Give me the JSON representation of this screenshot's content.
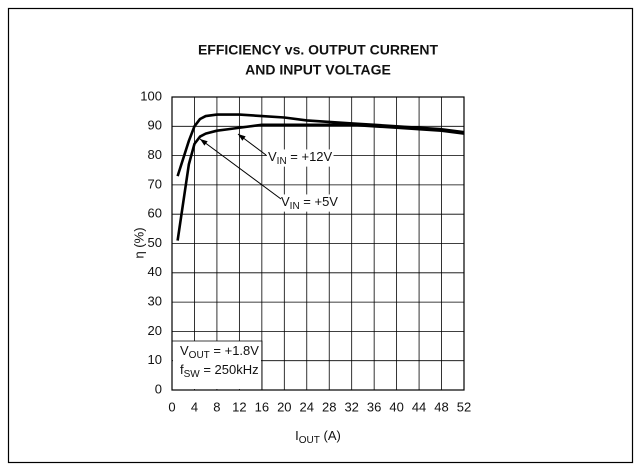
{
  "chart_data": {
    "type": "line",
    "title": [
      "EFFICIENCY vs. OUTPUT CURRENT",
      "AND INPUT VOLTAGE"
    ],
    "ylabel": "η (%)",
    "xlabel": [
      "I",
      "OUT",
      " (A)"
    ],
    "x": [
      1,
      2,
      3,
      4,
      5,
      6,
      8,
      10,
      12,
      16,
      20,
      24,
      28,
      32,
      36,
      40,
      44,
      48,
      52
    ],
    "series": [
      {
        "color": "#000000",
        "values": [
          73,
          79,
          85,
          90,
          92.5,
          93.5,
          94,
          94,
          94,
          93.5,
          93,
          92,
          91.5,
          91,
          90.5,
          90,
          89.5,
          89,
          88
        ]
      },
      {
        "color": "#000000",
        "values": [
          51,
          64,
          77,
          84,
          86.5,
          87.5,
          88.5,
          89,
          89.5,
          90.5,
          90.5,
          90.5,
          90.5,
          90.5,
          90,
          89.5,
          89,
          88.5,
          87.5
        ]
      }
    ],
    "annotations": [
      [
        "V",
        "IN",
        " = +12V"
      ],
      [
        "V",
        "IN",
        " = +5V"
      ],
      [
        "V",
        "OUT",
        " = +1.8V"
      ],
      [
        "f",
        "SW",
        " = 250kHz"
      ]
    ],
    "xlim": [
      0,
      52
    ],
    "xticks": [
      0,
      4,
      8,
      12,
      16,
      20,
      24,
      28,
      32,
      36,
      40,
      44,
      48,
      52
    ],
    "ylim": [
      0,
      100
    ],
    "yticks": [
      0,
      10,
      20,
      30,
      40,
      50,
      60,
      70,
      80,
      90,
      100
    ],
    "grid": true
  }
}
